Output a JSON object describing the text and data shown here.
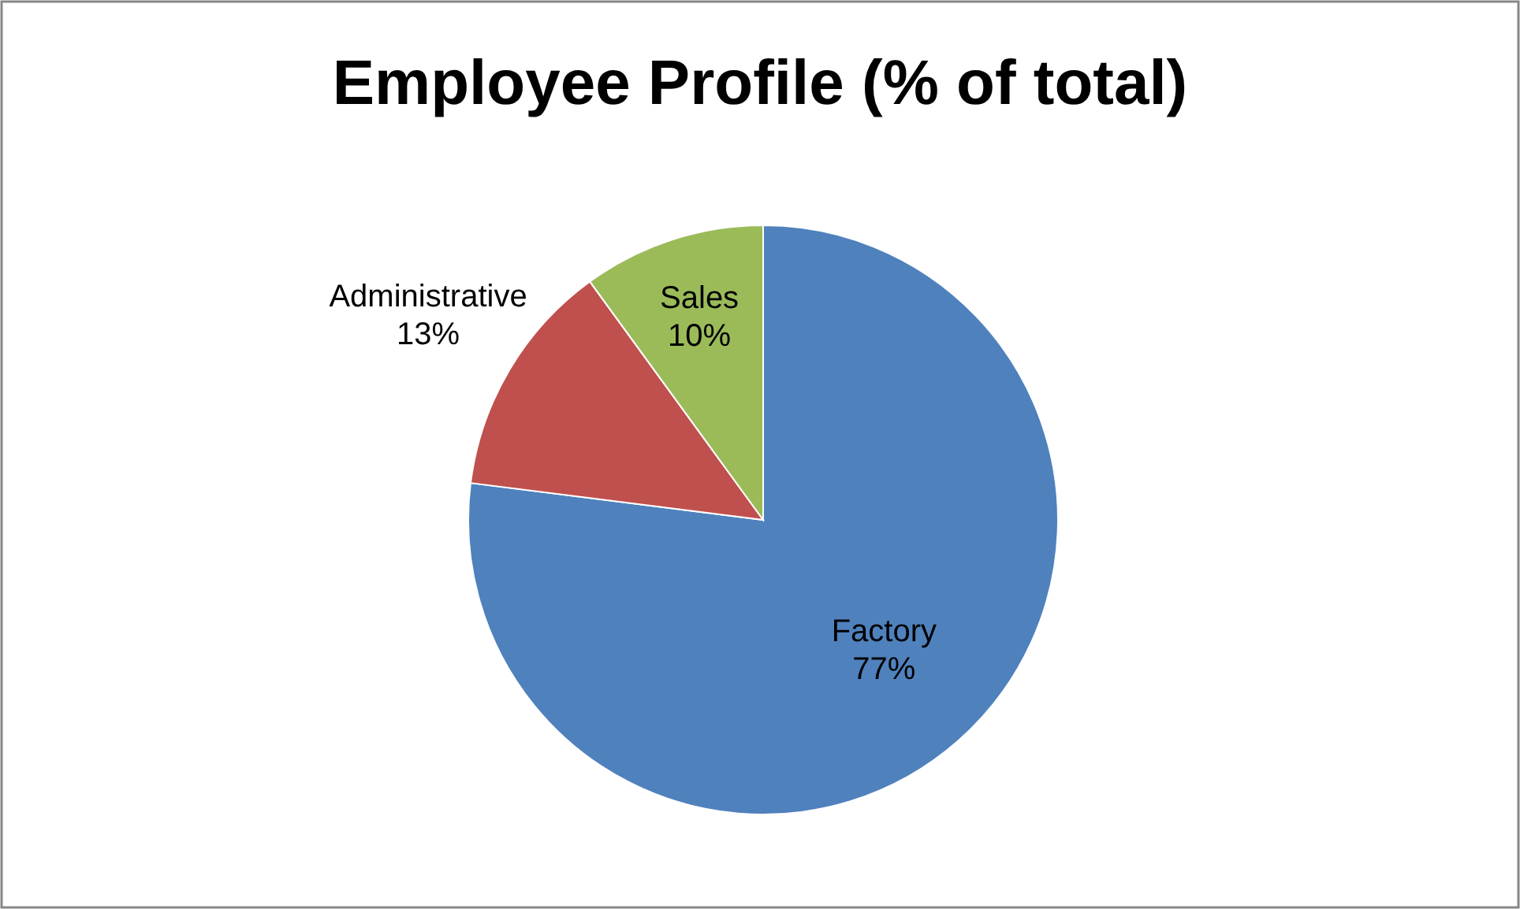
{
  "chart_data": {
    "type": "pie",
    "title": "Employee Profile (% of total)",
    "categories": [
      "Factory",
      "Administrative",
      "Sales"
    ],
    "values": [
      77,
      13,
      10
    ],
    "value_labels": [
      "77%",
      "13%",
      "10%"
    ],
    "colors": [
      "#4f81bd",
      "#c0504d",
      "#9bbb59"
    ]
  }
}
